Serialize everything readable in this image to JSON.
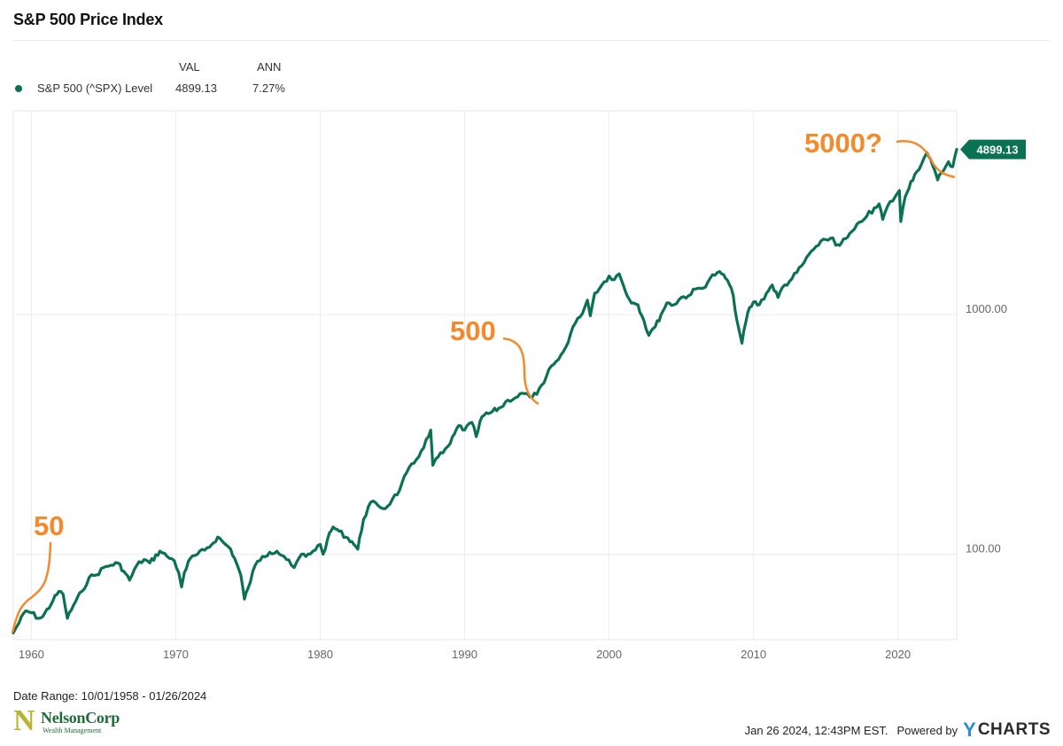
{
  "header": {
    "title": "S&P 500 Price Index"
  },
  "legend": {
    "col_val": "VAL",
    "col_ann": "ANN",
    "rows": [
      {
        "label": "S&P 500 (^SPX) Level",
        "val": "4899.13",
        "ann": "7.27%",
        "color": "#0a7152"
      }
    ]
  },
  "chart_data": {
    "type": "line",
    "title": "S&P 500 Price Index",
    "yscale": "log",
    "xlim": [
      1958.75,
      2024.07
    ],
    "ylim": [
      44,
      7100
    ],
    "x_ticks": [
      1960,
      1970,
      1980,
      1990,
      2000,
      2010,
      2020
    ],
    "y_ticks": [
      {
        "value": 100,
        "label": "100.00"
      },
      {
        "value": 1000,
        "label": "1000.00"
      }
    ],
    "grid": true,
    "last_value_label": "4899.13",
    "series": [
      {
        "name": "S&P 500 (^SPX) Level",
        "color": "#0a7152",
        "x": [
          1958.75,
          1959.0,
          1959.6,
          1960.0,
          1960.5,
          1960.8,
          1961.5,
          1961.9,
          1962.2,
          1962.5,
          1962.9,
          1963.5,
          1964.0,
          1964.5,
          1965.0,
          1965.5,
          1966.0,
          1966.4,
          1966.8,
          1967.3,
          1967.8,
          1968.2,
          1968.9,
          1969.4,
          1969.9,
          1970.2,
          1970.4,
          1970.6,
          1971.0,
          1971.5,
          1972.0,
          1972.5,
          1972.9,
          1973.3,
          1973.8,
          1974.2,
          1974.5,
          1974.75,
          1975.0,
          1975.5,
          1976.0,
          1976.5,
          1977.0,
          1977.5,
          1978.0,
          1978.2,
          1978.7,
          1979.0,
          1979.5,
          1980.0,
          1980.2,
          1980.5,
          1980.9,
          1981.3,
          1981.8,
          1982.2,
          1982.6,
          1983.0,
          1983.5,
          1984.0,
          1984.5,
          1985.0,
          1985.5,
          1986.0,
          1986.5,
          1987.0,
          1987.5,
          1987.65,
          1987.8,
          1988.0,
          1988.5,
          1989.0,
          1989.6,
          1990.0,
          1990.5,
          1990.8,
          1991.2,
          1991.8,
          1992.5,
          1993.0,
          1993.5,
          1994.0,
          1994.5,
          1995.0,
          1995.5,
          1996.0,
          1996.5,
          1997.0,
          1997.5,
          1998.0,
          1998.5,
          1998.7,
          1999.0,
          1999.5,
          2000.0,
          2000.2,
          2000.7,
          2001.0,
          2001.4,
          2001.7,
          2002.0,
          2002.4,
          2002.75,
          2003.0,
          2003.2,
          2003.6,
          2004.0,
          2004.5,
          2005.0,
          2005.5,
          2006.0,
          2006.5,
          2007.0,
          2007.5,
          2007.8,
          2008.2,
          2008.6,
          2008.85,
          2009.2,
          2009.6,
          2010.0,
          2010.4,
          2010.9,
          2011.3,
          2011.7,
          2012.0,
          2012.5,
          2013.0,
          2013.5,
          2014.0,
          2014.5,
          2015.0,
          2015.5,
          2015.7,
          2016.1,
          2016.5,
          2017.0,
          2017.5,
          2018.0,
          2018.2,
          2018.7,
          2018.95,
          2019.3,
          2019.8,
          2020.1,
          2020.2,
          2020.5,
          2020.9,
          2021.3,
          2021.8,
          2022.0,
          2022.4,
          2022.75,
          2023.0,
          2023.5,
          2023.8,
          2024.07
        ],
        "y": [
          47,
          50,
          58,
          57,
          54,
          55,
          64,
          70,
          68,
          54,
          61,
          70,
          80,
          82,
          88,
          90,
          92,
          85,
          78,
          90,
          95,
          92,
          103,
          98,
          94,
          84,
          73,
          84,
          96,
          100,
          104,
          110,
          118,
          112,
          105,
          92,
          82,
          65,
          72,
          90,
          98,
          102,
          103,
          98,
          90,
          88,
          100,
          98,
          103,
          110,
          100,
          115,
          130,
          125,
          118,
          113,
          105,
          140,
          165,
          160,
          155,
          170,
          185,
          220,
          240,
          270,
          310,
          330,
          235,
          250,
          265,
          290,
          345,
          330,
          355,
          310,
          375,
          390,
          410,
          440,
          450,
          470,
          455,
          465,
          520,
          610,
          650,
          730,
          890,
          980,
          1150,
          990,
          1230,
          1330,
          1450,
          1400,
          1480,
          1320,
          1160,
          1120,
          1100,
          950,
          820,
          870,
          890,
          1000,
          1120,
          1100,
          1180,
          1200,
          1280,
          1290,
          1420,
          1500,
          1480,
          1390,
          1200,
          950,
          760,
          1020,
          1130,
          1100,
          1230,
          1330,
          1180,
          1300,
          1380,
          1500,
          1650,
          1840,
          1950,
          2060,
          2090,
          1950,
          2000,
          2100,
          2280,
          2450,
          2700,
          2650,
          2900,
          2500,
          2850,
          3100,
          3300,
          2450,
          3100,
          3600,
          3950,
          4500,
          4750,
          4200,
          3650,
          3900,
          4350,
          4150,
          4899.13
        ]
      }
    ],
    "annotations": [
      {
        "text": "50",
        "near_x": 1958.75
      },
      {
        "text": "500",
        "near_x": 1995.3
      },
      {
        "text": "5000?",
        "near_x": 2024.07
      }
    ]
  },
  "footer": {
    "date_range": "Date Range: 10/01/1958 - 01/26/2024",
    "logo_letter": "N",
    "logo_name": "NelsonCorp",
    "logo_subtitle": "Wealth Management",
    "timestamp": "Jan 26 2024, 12:43PM EST.",
    "powered_by": "Powered by",
    "brand_y": "Y",
    "brand_rest": "CHARTS"
  }
}
